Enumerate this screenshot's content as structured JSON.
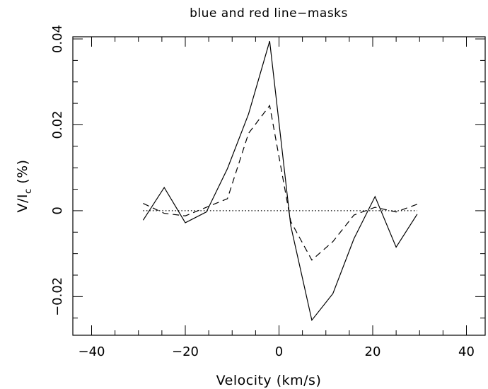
{
  "chart_data": {
    "type": "line",
    "title": "blue and red line−masks",
    "xlabel": "Velocity (km/s)",
    "ylabel": "V/I",
    "ylabel_subscript": "c",
    "ylabel_unit": "(%)",
    "xlim": [
      -44,
      44
    ],
    "ylim": [
      -0.029,
      0.0405
    ],
    "x_ticks": [
      -40,
      -20,
      0,
      20,
      40
    ],
    "x_tick_labels": [
      "−40",
      "−20",
      "0",
      "20",
      "40"
    ],
    "y_ticks": [
      -0.02,
      0,
      0.02,
      0.04
    ],
    "y_tick_labels": [
      "−0.02",
      "0",
      "0.02",
      "0.04"
    ],
    "grid": false,
    "legend": "none",
    "series": [
      {
        "style": "solid",
        "x": [
          -29,
          -24.5,
          -20,
          -15.5,
          -11,
          -6.5,
          -2,
          2.5,
          7,
          11.5,
          16,
          20.5,
          25,
          29.5
        ],
        "y": [
          -0.0022,
          0.0054,
          -0.0028,
          -0.0003,
          0.0098,
          0.0225,
          0.0395,
          -0.0035,
          -0.0255,
          -0.0193,
          -0.0065,
          0.0033,
          -0.0085,
          -0.0008
        ]
      },
      {
        "style": "dashed",
        "x": [
          -29,
          -24.5,
          -20,
          -15.5,
          -11,
          -6.5,
          -2,
          2.5,
          7,
          11.5,
          16,
          20.5,
          25,
          29.5
        ],
        "y": [
          0.0017,
          -0.0006,
          -0.0012,
          0.0008,
          0.0028,
          0.018,
          0.0245,
          -0.0025,
          -0.0115,
          -0.0072,
          -0.001,
          0.0008,
          -0.0003,
          0.0015
        ]
      },
      {
        "style": "dotted",
        "x": [
          -29,
          29.5
        ],
        "y": [
          0,
          0
        ]
      }
    ]
  }
}
